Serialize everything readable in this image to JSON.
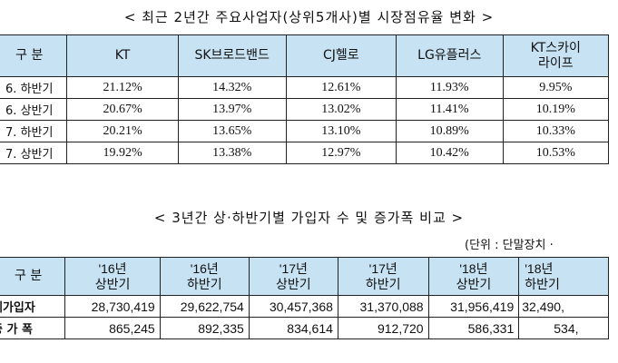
{
  "table1": {
    "title": "< 최근 2년간 주요사업자(상위5개사)별 시장점유율 변화 >",
    "header_first": "구 분",
    "columns": [
      "KT",
      "SK브로드밴드",
      "CJ헬로",
      "LG유플러스",
      "KT스카이\n라이프"
    ],
    "rows": [
      {
        "label": "6. 하반기",
        "values": [
          "21.12%",
          "14.32%",
          "12.61%",
          "11.93%",
          "9.95%"
        ]
      },
      {
        "label": "6. 상반기",
        "values": [
          "20.67%",
          "13.97%",
          "13.02%",
          "11.41%",
          "10.19%"
        ]
      },
      {
        "label": "7. 하반기",
        "values": [
          "20.21%",
          "13.65%",
          "13.10%",
          "10.89%",
          "10.33%"
        ]
      },
      {
        "label": "7. 상반기",
        "values": [
          "19.92%",
          "13.38%",
          "12.97%",
          "10.42%",
          "10.53%"
        ]
      }
    ]
  },
  "table2": {
    "title": "< 3년간 상·하반기별 가입자 수 및 증가폭 비교 >",
    "unit": "(단위 : 단말장치 ·",
    "header_first": "구 분",
    "columns": [
      "'16년\n상반기",
      "'16년\n하반기",
      "'17년\n상반기",
      "'17년\n하반기",
      "'18년\n상반기",
      "'18년\n하반기"
    ],
    "rows": [
      {
        "label": "체가입자",
        "values": [
          "28,730,419",
          "29,622,754",
          "30,457,368",
          "31,370,088",
          "31,956,419",
          "32,490,"
        ]
      },
      {
        "label": "증 가 폭",
        "values": [
          "865,245",
          "892,335",
          "834,614",
          "912,720",
          "586,331",
          "534,"
        ]
      }
    ]
  }
}
